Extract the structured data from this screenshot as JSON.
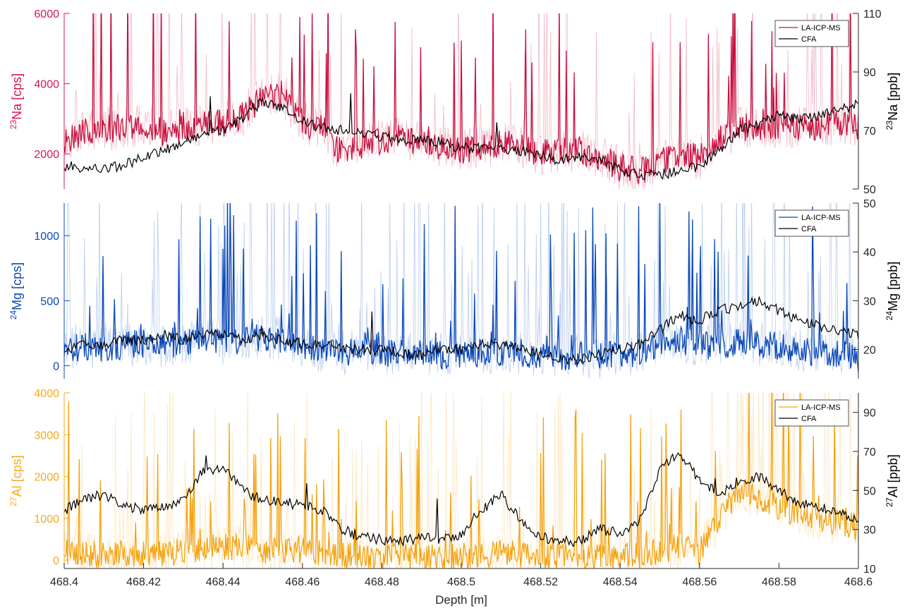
{
  "chart_data": {
    "type": "line",
    "xlabel": "Depth [m]",
    "xlim": [
      468.4,
      468.6
    ],
    "xticks": [
      "468.4",
      "468.42",
      "468.44",
      "468.46",
      "468.48",
      "468.5",
      "468.52",
      "468.54",
      "468.56",
      "468.58",
      "468.6"
    ],
    "grid": false,
    "legend_position": "top-right",
    "panels": [
      {
        "key": "na",
        "ylabel_left": {
          "sup": "23",
          "base": "Na [cps]"
        },
        "ylabel_right": {
          "sup": "23",
          "base": "Na [ppb]"
        },
        "ylim_left": [
          1000,
          6000
        ],
        "yticks_left": [
          "2000",
          "4000",
          "6000"
        ],
        "ylim_right": [
          50,
          110
        ],
        "yticks_right": [
          "50",
          "70",
          "90",
          "110"
        ],
        "left_color": "#d6174a",
        "raw_color": "#f2b8c6",
        "series": [
          {
            "name": "LA-ICP-MS",
            "axis": "left",
            "color": "#c8103e",
            "x": [
              468.4,
              468.405,
              468.41,
              468.415,
              468.42,
              468.425,
              468.43,
              468.435,
              468.44,
              468.445,
              468.45,
              468.455,
              468.46,
              468.465,
              468.47,
              468.475,
              468.48,
              468.485,
              468.49,
              468.495,
              468.5,
              468.505,
              468.51,
              468.515,
              468.52,
              468.525,
              468.53,
              468.535,
              468.54,
              468.545,
              468.55,
              468.555,
              468.56,
              468.565,
              468.57,
              468.575,
              468.58,
              468.585,
              468.59,
              468.595,
              468.6
            ],
            "y": [
              2400,
              2600,
              2700,
              2750,
              2800,
              2600,
              2700,
              2900,
              2850,
              3100,
              3600,
              3700,
              2900,
              2700,
              2000,
              2200,
              2400,
              2500,
              2300,
              2200,
              2100,
              2200,
              2300,
              2200,
              2000,
              2100,
              2100,
              1900,
              1600,
              1500,
              1800,
              2000,
              1900,
              2400,
              2800,
              2700,
              2800,
              2750,
              2800,
              2900,
              2800
            ]
          },
          {
            "name": "CFA",
            "axis": "right",
            "color": "#000000",
            "x": [
              468.4,
              468.405,
              468.41,
              468.415,
              468.42,
              468.425,
              468.43,
              468.435,
              468.44,
              468.445,
              468.45,
              468.455,
              468.46,
              468.465,
              468.47,
              468.475,
              468.48,
              468.485,
              468.49,
              468.495,
              468.5,
              468.505,
              468.51,
              468.515,
              468.52,
              468.525,
              468.53,
              468.535,
              468.54,
              468.545,
              468.55,
              468.555,
              468.56,
              468.565,
              468.57,
              468.575,
              468.58,
              468.585,
              468.59,
              468.595,
              468.6
            ],
            "y": [
              58,
              57,
              57,
              58,
              61,
              63,
              66,
              69,
              70,
              74,
              80,
              78,
              73,
              71,
              70,
              69,
              68,
              67,
              67,
              66,
              64,
              64,
              64,
              63,
              61,
              60,
              61,
              60,
              57,
              55,
              55,
              56,
              58,
              63,
              70,
              72,
              75,
              74,
              75,
              77,
              79
            ]
          }
        ]
      },
      {
        "key": "mg",
        "ylabel_left": {
          "sup": "24",
          "base": "Mg [cps]"
        },
        "ylabel_right": {
          "sup": "24",
          "base": "Mg [ppb]"
        },
        "ylim_left": [
          -100,
          1250
        ],
        "yticks_left": [
          "0",
          "500",
          "1000"
        ],
        "ylim_right": [
          14,
          50
        ],
        "yticks_right": [
          "20",
          "30",
          "40",
          "50"
        ],
        "left_color": "#0a48b8",
        "raw_color": "#b9cdee",
        "series": [
          {
            "name": "LA-ICP-MS",
            "axis": "left",
            "color": "#0a48b8",
            "x": [
              468.4,
              468.405,
              468.41,
              468.415,
              468.42,
              468.425,
              468.43,
              468.435,
              468.44,
              468.445,
              468.45,
              468.455,
              468.46,
              468.465,
              468.47,
              468.475,
              468.48,
              468.485,
              468.49,
              468.495,
              468.5,
              468.505,
              468.51,
              468.515,
              468.52,
              468.525,
              468.53,
              468.535,
              468.54,
              468.545,
              468.55,
              468.555,
              468.56,
              468.565,
              468.57,
              468.575,
              468.58,
              468.585,
              468.59,
              468.595,
              468.6
            ],
            "y": [
              120,
              150,
              130,
              160,
              170,
              150,
              180,
              200,
              180,
              200,
              220,
              200,
              160,
              120,
              100,
              110,
              100,
              90,
              90,
              80,
              80,
              100,
              110,
              100,
              80,
              70,
              80,
              70,
              90,
              100,
              180,
              200,
              160,
              150,
              180,
              170,
              150,
              120,
              100,
              90,
              60
            ]
          },
          {
            "name": "CFA",
            "axis": "right",
            "color": "#000000",
            "x": [
              468.4,
              468.405,
              468.41,
              468.415,
              468.42,
              468.425,
              468.43,
              468.435,
              468.44,
              468.445,
              468.45,
              468.455,
              468.46,
              468.465,
              468.47,
              468.475,
              468.48,
              468.485,
              468.49,
              468.495,
              468.5,
              468.505,
              468.51,
              468.515,
              468.52,
              468.525,
              468.53,
              468.535,
              468.54,
              468.545,
              468.55,
              468.555,
              468.56,
              468.565,
              468.57,
              468.575,
              468.58,
              468.585,
              468.59,
              468.595,
              468.6
            ],
            "y": [
              20,
              21,
              21,
              22,
              22,
              23,
              22,
              23,
              23,
              22,
              23,
              22,
              21,
              21,
              20,
              20,
              20,
              19,
              19,
              20,
              20,
              21,
              21,
              20,
              19,
              18,
              18,
              19,
              20,
              21,
              24,
              27,
              26,
              28,
              29,
              30,
              28,
              26,
              25,
              24,
              23
            ]
          }
        ]
      },
      {
        "key": "al",
        "ylabel_left": {
          "sup": "27",
          "base": "Al [cps]"
        },
        "ylabel_right": {
          "sup": "27",
          "base": "Al [ppb]"
        },
        "ylim_left": [
          -200,
          4000
        ],
        "yticks_left": [
          "0",
          "1000",
          "2000",
          "3000",
          "4000"
        ],
        "ylim_right": [
          10,
          100
        ],
        "yticks_right": [
          "10",
          "30",
          "50",
          "70",
          "90"
        ],
        "left_color": "#f7a81e",
        "raw_color": "#fde6bd",
        "series": [
          {
            "name": "LA-ICP-MS",
            "axis": "left",
            "color": "#f5a20f",
            "x": [
              468.4,
              468.405,
              468.41,
              468.415,
              468.42,
              468.425,
              468.43,
              468.435,
              468.44,
              468.445,
              468.45,
              468.455,
              468.46,
              468.465,
              468.47,
              468.475,
              468.48,
              468.485,
              468.49,
              468.495,
              468.5,
              468.505,
              468.51,
              468.515,
              468.52,
              468.525,
              468.53,
              468.535,
              468.54,
              468.545,
              468.55,
              468.555,
              468.56,
              468.565,
              468.57,
              468.575,
              468.58,
              468.585,
              468.59,
              468.595,
              468.6
            ],
            "y": [
              200,
              150,
              120,
              150,
              200,
              180,
              200,
              300,
              350,
              300,
              250,
              200,
              200,
              150,
              100,
              100,
              80,
              80,
              70,
              80,
              80,
              100,
              150,
              120,
              80,
              80,
              80,
              70,
              80,
              100,
              250,
              300,
              200,
              1000,
              1700,
              1500,
              1300,
              1100,
              1000,
              900,
              800
            ]
          },
          {
            "name": "CFA",
            "axis": "right",
            "color": "#000000",
            "x": [
              468.4,
              468.405,
              468.41,
              468.415,
              468.42,
              468.425,
              468.43,
              468.435,
              468.44,
              468.445,
              468.45,
              468.455,
              468.46,
              468.465,
              468.47,
              468.475,
              468.48,
              468.485,
              468.49,
              468.495,
              468.5,
              468.505,
              468.51,
              468.515,
              468.52,
              468.525,
              468.53,
              468.535,
              468.54,
              468.545,
              468.55,
              468.555,
              468.56,
              468.565,
              468.57,
              468.575,
              468.58,
              468.585,
              468.59,
              468.595,
              468.6
            ],
            "y": [
              40,
              45,
              48,
              42,
              40,
              41,
              45,
              60,
              62,
              50,
              45,
              44,
              42,
              40,
              30,
              26,
              25,
              24,
              26,
              25,
              28,
              40,
              48,
              35,
              26,
              24,
              24,
              30,
              28,
              35,
              60,
              70,
              55,
              48,
              55,
              57,
              50,
              44,
              42,
              38,
              35
            ]
          }
        ]
      }
    ]
  }
}
